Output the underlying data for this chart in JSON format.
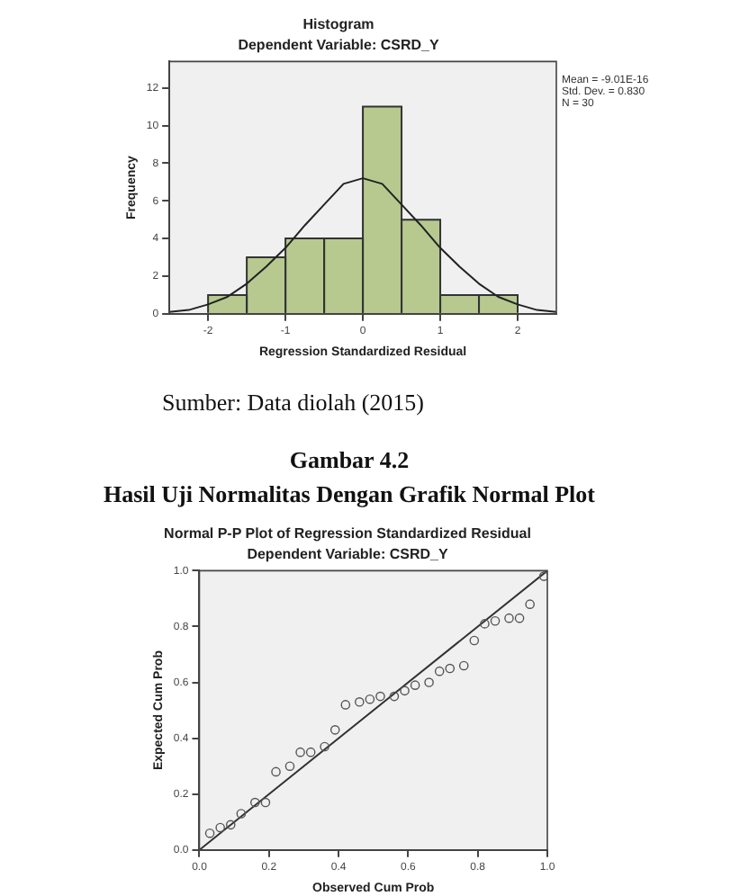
{
  "chart_data": [
    {
      "type": "histogram",
      "title": "Histogram",
      "subtitle": "Dependent Variable: CSRD_Y",
      "xlabel": "Regression Standardized Residual",
      "ylabel": "Frequency",
      "bins": [
        -2,
        -1.5,
        -1,
        -0.5,
        0,
        0.5,
        1,
        1.5,
        2
      ],
      "values": [
        1,
        3,
        4,
        4,
        11,
        5,
        1,
        1
      ],
      "color": "#b7c98f",
      "xlim": [
        -2.5,
        2.5
      ],
      "xticks": [
        -2,
        -1,
        0,
        1,
        2
      ],
      "ylim": [
        0,
        13.4
      ],
      "yticks": [
        0,
        2,
        4,
        6,
        8,
        10,
        12
      ],
      "series": [
        {
          "type": "line",
          "color": "#222222",
          "x": [
            -2.5,
            -2.25,
            -2,
            -1.75,
            -1.5,
            -1.25,
            -1,
            -0.75,
            -0.5,
            -0.25,
            0,
            0.25,
            0.5,
            0.75,
            1,
            1.25,
            1.5,
            1.75,
            2,
            2.25,
            2.5
          ],
          "values": [
            0.1,
            0.2,
            0.5,
            0.9,
            1.6,
            2.5,
            3.5,
            4.7,
            5.8,
            6.9,
            7.2,
            6.9,
            5.8,
            4.7,
            3.5,
            2.5,
            1.6,
            0.9,
            0.5,
            0.2,
            0.1
          ]
        }
      ],
      "annotations": [
        "Mean = -9.01E-16",
        "Std. Dev. = 0.830",
        "N = 30",
        "Sumber: Data diolah (2015)"
      ]
    },
    {
      "type": "scatter",
      "title": "Normal P-P Plot of Regression Standardized Residual",
      "subtitle": "Dependent Variable: CSRD_Y",
      "xlabel": "Observed Cum Prob",
      "ylabel": "Expected Cum Prob",
      "xlim": [
        0,
        1
      ],
      "ylim": [
        0,
        1
      ],
      "xticks": [
        {
          "value": 0,
          "label": "0.0"
        },
        0.2,
        0.4,
        0.6,
        0.8,
        {
          "value": 1,
          "label": "1.0"
        }
      ],
      "yticks": [
        {
          "value": 0,
          "label": "0.0"
        },
        0.2,
        0.4,
        0.6,
        0.8,
        {
          "value": 1,
          "label": "1.0"
        }
      ],
      "series": [
        {
          "type": "scatter",
          "color": "#555555",
          "marker": "circle",
          "x": [
            0.03,
            0.06,
            0.09,
            0.12,
            0.16,
            0.19,
            0.22,
            0.26,
            0.29,
            0.32,
            0.36,
            0.39,
            0.42,
            0.46,
            0.49,
            0.52,
            0.56,
            0.59,
            0.62,
            0.66,
            0.69,
            0.72,
            0.76,
            0.79,
            0.82,
            0.85,
            0.89,
            0.92,
            0.95,
            0.99
          ],
          "values": [
            0.06,
            0.08,
            0.09,
            0.13,
            0.17,
            0.17,
            0.28,
            0.3,
            0.35,
            0.35,
            0.37,
            0.43,
            0.52,
            0.53,
            0.54,
            0.55,
            0.55,
            0.57,
            0.59,
            0.6,
            0.64,
            0.65,
            0.66,
            0.75,
            0.81,
            0.82,
            0.83,
            0.83,
            0.88,
            0.98
          ]
        },
        {
          "type": "line",
          "color": "#333333",
          "x": [
            0,
            1
          ],
          "values": [
            0,
            1
          ]
        }
      ],
      "annotations": [
        "Gambar 4.2",
        "Hasil Uji Normalitas Dengan Grafik Normal Plot"
      ]
    }
  ]
}
